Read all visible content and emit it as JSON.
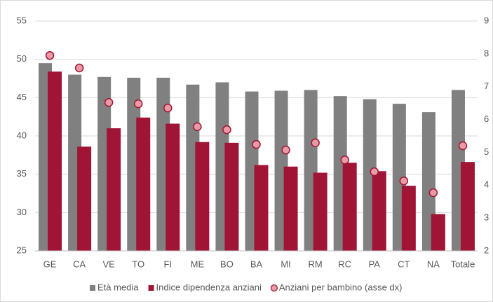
{
  "chart_data": {
    "type": "bar",
    "categories": [
      "GE",
      "CA",
      "VE",
      "TO",
      "FI",
      "ME",
      "BO",
      "BA",
      "MI",
      "RM",
      "RC",
      "PA",
      "CT",
      "NA",
      "Totale"
    ],
    "series": [
      {
        "name": "Età media",
        "color": "#808080",
        "values": [
          49.5,
          48.0,
          47.7,
          47.6,
          47.6,
          46.7,
          47.0,
          45.8,
          45.9,
          46.0,
          45.2,
          44.8,
          44.2,
          43.1,
          46.0
        ]
      },
      {
        "name": "Indice dipendenza anziani",
        "color": "#a01535",
        "values": [
          48.4,
          38.6,
          41.0,
          42.4,
          41.6,
          39.2,
          39.1,
          36.2,
          36.0,
          35.2,
          36.5,
          35.4,
          33.5,
          29.8,
          36.6
        ]
      },
      {
        "name": "Anziani per bambino (asse dx)",
        "color": "#e89aa5",
        "axis": "y2",
        "values": [
          7.95,
          7.57,
          6.52,
          6.48,
          6.35,
          5.78,
          5.69,
          5.24,
          5.07,
          5.29,
          4.77,
          4.41,
          4.13,
          3.77,
          5.2
        ]
      }
    ],
    "ylim": [
      25,
      55
    ],
    "yticks": [
      25,
      30,
      35,
      40,
      45,
      50,
      55
    ],
    "y2lim": [
      2,
      9
    ],
    "y2ticks": [
      2,
      3,
      4,
      5,
      6,
      7,
      8,
      9
    ],
    "grid": true,
    "legend": "bottom"
  }
}
